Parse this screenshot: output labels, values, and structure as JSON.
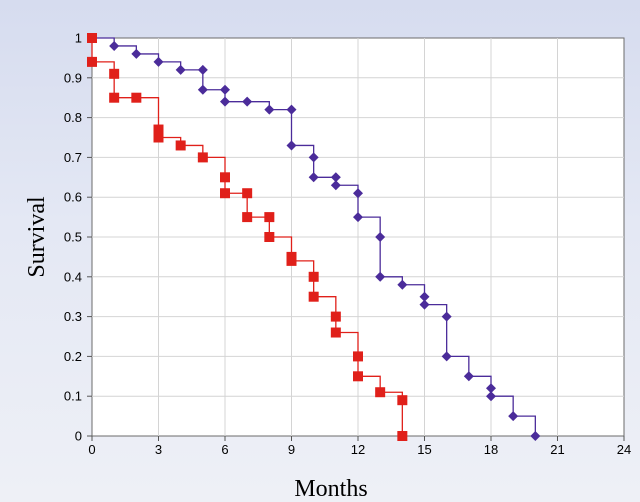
{
  "chart_data": {
    "type": "line",
    "title": "",
    "xlabel": "Months",
    "ylabel": "Survival",
    "xlim": [
      0,
      24
    ],
    "ylim": [
      0,
      1
    ],
    "xticks": [
      0,
      3,
      6,
      9,
      12,
      15,
      18,
      21,
      24
    ],
    "yticks": [
      0,
      0.1,
      0.2,
      0.3,
      0.4,
      0.5,
      0.6,
      0.7,
      0.8,
      0.9,
      1
    ],
    "grid": true,
    "legend": "none",
    "series": [
      {
        "color": "#4b2c9a",
        "marker": "diamond",
        "step": true,
        "x": [
          0,
          1,
          2,
          3,
          4,
          5,
          5,
          6,
          6,
          7,
          8,
          9,
          9,
          10,
          10,
          11,
          11,
          12,
          12,
          13,
          13,
          14,
          15,
          15,
          16,
          16,
          17,
          18,
          18,
          19,
          20
        ],
        "y": [
          1,
          0.98,
          0.96,
          0.94,
          0.92,
          0.92,
          0.87,
          0.87,
          0.84,
          0.84,
          0.82,
          0.82,
          0.73,
          0.7,
          0.65,
          0.65,
          0.63,
          0.61,
          0.55,
          0.5,
          0.4,
          0.38,
          0.35,
          0.33,
          0.3,
          0.2,
          0.15,
          0.12,
          0.1,
          0.05,
          0
        ]
      },
      {
        "color": "#e0201a",
        "marker": "square",
        "step": true,
        "x": [
          0,
          0,
          1,
          1,
          2,
          3,
          3,
          4,
          5,
          6,
          6,
          7,
          7,
          8,
          8,
          9,
          9,
          10,
          10,
          11,
          11,
          12,
          12,
          13,
          14,
          14
        ],
        "y": [
          1,
          0.94,
          0.91,
          0.85,
          0.85,
          0.77,
          0.75,
          0.73,
          0.7,
          0.65,
          0.61,
          0.61,
          0.55,
          0.55,
          0.5,
          0.45,
          0.44,
          0.4,
          0.35,
          0.3,
          0.26,
          0.2,
          0.15,
          0.11,
          0.09,
          0
        ]
      }
    ]
  }
}
